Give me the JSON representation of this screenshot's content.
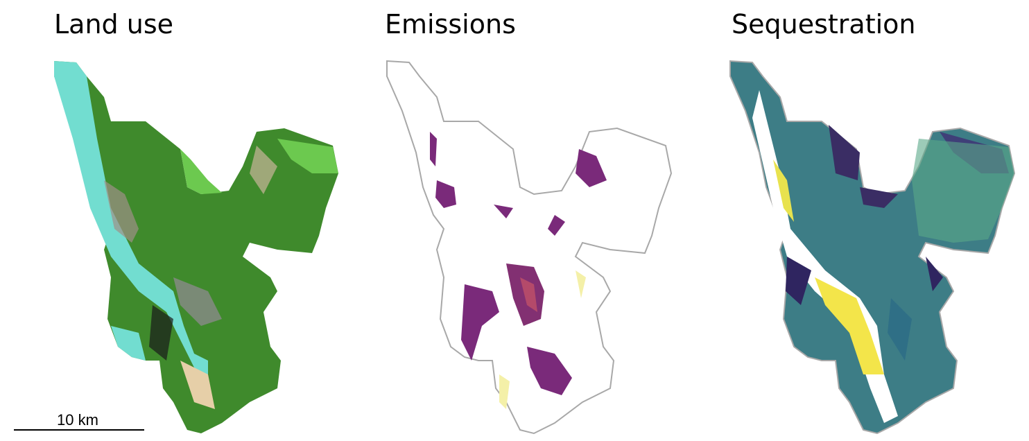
{
  "panels": [
    {
      "title": "Land use"
    },
    {
      "title": "Emissions"
    },
    {
      "title": "Sequestration"
    }
  ],
  "scale_bar": {
    "label": "10 km"
  }
}
